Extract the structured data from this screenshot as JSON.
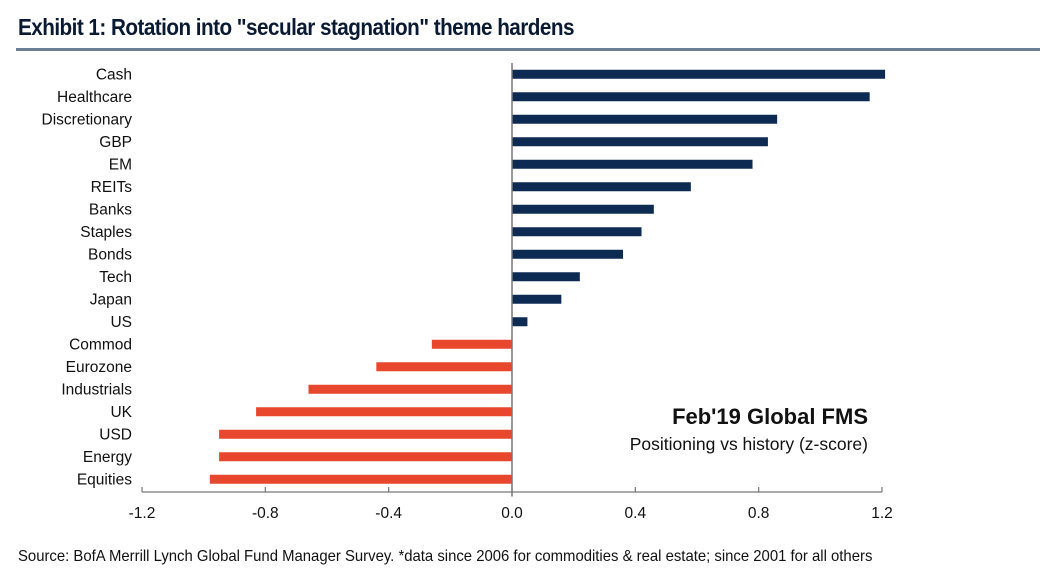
{
  "header": {
    "title": "Exhibit 1: Rotation into \"secular stagnation\" theme hardens"
  },
  "footer": {
    "source": "Source: BofA Merrill Lynch Global Fund Manager Survey. *data since 2006 for commodities & real estate; since 2001 for all others"
  },
  "colors": {
    "positive": "#0d2a52",
    "negative": "#e8472e",
    "rule": "#6a7f96",
    "axis": "#777777"
  },
  "chart_data": {
    "type": "bar",
    "orientation": "horizontal",
    "title": "Exhibit 1: Rotation into \"secular stagnation\" theme hardens",
    "annotation_title": "Feb'19 Global FMS",
    "annotation_subtitle": "Positioning vs history (z-score)",
    "xlabel": "",
    "ylabel": "",
    "xlim": [
      -1.2,
      1.2
    ],
    "xticks": [
      -1.2,
      -0.8,
      -0.4,
      0.0,
      0.4,
      0.8,
      1.2
    ],
    "xtick_labels": [
      "-1.2",
      "-0.8",
      "-0.4",
      "0.0",
      "0.4",
      "0.8",
      "1.2"
    ],
    "grid": false,
    "legend": "none",
    "categories": [
      "Cash",
      "Healthcare",
      "Discretionary",
      "GBP",
      "EM",
      "REITs",
      "Banks",
      "Staples",
      "Bonds",
      "Tech",
      "Japan",
      "US",
      "Commod",
      "Eurozone",
      "Industrials",
      "UK",
      "USD",
      "Energy",
      "Equities"
    ],
    "values": [
      1.21,
      1.16,
      0.86,
      0.83,
      0.78,
      0.58,
      0.46,
      0.42,
      0.36,
      0.22,
      0.16,
      0.05,
      -0.26,
      -0.44,
      -0.66,
      -0.83,
      -0.95,
      -0.95,
      -0.98
    ]
  }
}
